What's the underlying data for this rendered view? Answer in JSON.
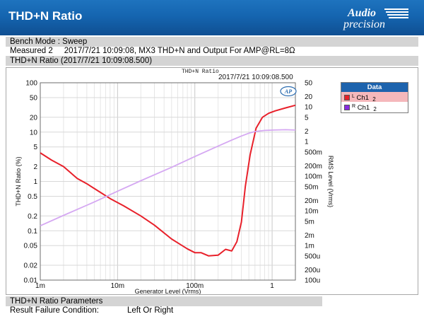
{
  "header": {
    "title": "THD+N Ratio",
    "logo_text_top": "Audio",
    "logo_text_bottom": "precision"
  },
  "info": {
    "bench_mode": "Bench Mode : Sweep",
    "measured_label": "Measured 2",
    "measured_detail": "2017/7/21 10:09:08, MX3 THD+N and Output For AMP@RL=8Ω",
    "section_title": "THD+N Ratio (2017/7/21 10:09:08.500)"
  },
  "plot": {
    "inner_title": "THD+N Ratio",
    "timestamp": "2017/7/21 10:09:08.500",
    "ap_badge": "AP"
  },
  "legend": {
    "header": "Data",
    "entries": [
      {
        "prefix": "L",
        "label": "Ch1",
        "suffix": "2",
        "color": "#e8202a"
      },
      {
        "prefix": "R",
        "label": "Ch1",
        "suffix": "2",
        "color": "#8a2be2"
      }
    ]
  },
  "params": {
    "header": "THD+N Ratio Parameters",
    "condition_label": "Result Failure Condition:",
    "condition_value": "Left Or Right"
  },
  "chart_data": {
    "type": "line",
    "title": "THD+N Ratio",
    "xlabel": "Generator Level (Vrms)",
    "ylabel": "THD+N Ratio (%)",
    "y2label": "RMS Level (Vrms)",
    "xscale": "log",
    "yscale": "log",
    "y2scale": "log",
    "xlim": [
      0.001,
      2
    ],
    "ylim": [
      0.01,
      100
    ],
    "y2lim": [
      0.0001,
      50
    ],
    "grid": true,
    "legend_position": "right",
    "x_ticks": [
      0.001,
      0.01,
      0.1,
      1
    ],
    "x_tick_labels": [
      "1m",
      "10m",
      "100m",
      "1"
    ],
    "y_ticks": [
      0.01,
      0.02,
      0.05,
      0.1,
      0.2,
      0.5,
      1,
      2,
      5,
      10,
      20,
      50,
      100
    ],
    "y_tick_labels": [
      "0.01",
      "0.02",
      "0.05",
      "0.1",
      "0.2",
      "0.5",
      "1",
      "2",
      "5",
      "10",
      "20",
      "50",
      "100"
    ],
    "y2_ticks": [
      0.0001,
      0.0002,
      0.0005,
      0.001,
      0.002,
      0.005,
      0.01,
      0.02,
      0.05,
      0.1,
      0.2,
      0.5,
      1,
      2,
      5,
      10,
      20,
      50
    ],
    "y2_tick_labels": [
      "100u",
      "200u",
      "500u",
      "1m",
      "2m",
      "5m",
      "10m",
      "20m",
      "50m",
      "100m",
      "200m",
      "500m",
      "1",
      "2",
      "5",
      "10",
      "20",
      "50"
    ],
    "series": [
      {
        "name": "Ch1",
        "axis": "left",
        "color": "#e8202a",
        "x": [
          0.001,
          0.0014,
          0.002,
          0.003,
          0.004,
          0.006,
          0.008,
          0.012,
          0.02,
          0.03,
          0.05,
          0.08,
          0.1,
          0.12,
          0.15,
          0.2,
          0.25,
          0.3,
          0.35,
          0.4,
          0.45,
          0.52,
          0.62,
          0.75,
          0.9,
          1.1,
          1.5,
          2.0
        ],
        "values": [
          3.8,
          2.7,
          2.0,
          1.15,
          0.9,
          0.6,
          0.45,
          0.32,
          0.2,
          0.13,
          0.068,
          0.043,
          0.036,
          0.036,
          0.031,
          0.032,
          0.042,
          0.039,
          0.06,
          0.15,
          0.8,
          3.5,
          12,
          20,
          24,
          27,
          31,
          35
        ]
      },
      {
        "name": "Ch1",
        "axis": "right",
        "color": "#d5a8f2",
        "x": [
          0.001,
          0.002,
          0.005,
          0.01,
          0.02,
          0.05,
          0.1,
          0.2,
          0.3,
          0.4,
          0.5,
          0.6,
          0.8,
          1.0,
          1.5,
          2.0
        ],
        "values": [
          0.0037,
          0.0074,
          0.018,
          0.037,
          0.074,
          0.18,
          0.37,
          0.74,
          1.1,
          1.45,
          1.75,
          1.95,
          2.1,
          2.15,
          2.2,
          2.15
        ]
      }
    ]
  }
}
